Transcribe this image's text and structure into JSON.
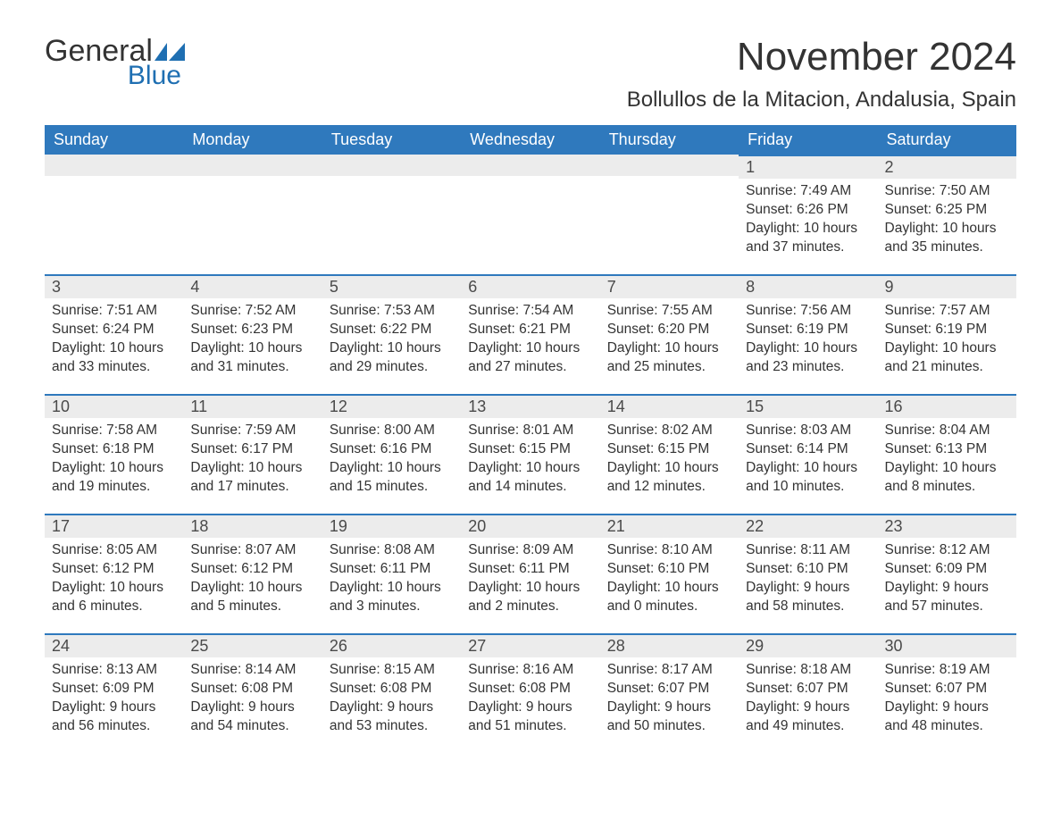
{
  "logo": {
    "word1": "General",
    "word2": "Blue",
    "icon_color": "#1f6fb2"
  },
  "title": "November 2024",
  "location": "Bollullos de la Mitacion, Andalusia, Spain",
  "colors": {
    "header_bg": "#2f79bd",
    "header_text": "#ffffff",
    "band_bg": "#ececec",
    "band_border": "#2f79bd",
    "text": "#333333",
    "logo_blue": "#1f6fb2"
  },
  "weekdays": [
    "Sunday",
    "Monday",
    "Tuesday",
    "Wednesday",
    "Thursday",
    "Friday",
    "Saturday"
  ],
  "labels": {
    "sunrise": "Sunrise:",
    "sunset": "Sunset:",
    "daylight": "Daylight:"
  },
  "weeks": [
    [
      null,
      null,
      null,
      null,
      null,
      {
        "day": "1",
        "sunrise": "7:49 AM",
        "sunset": "6:26 PM",
        "daylight1": "10 hours",
        "daylight2": "and 37 minutes."
      },
      {
        "day": "2",
        "sunrise": "7:50 AM",
        "sunset": "6:25 PM",
        "daylight1": "10 hours",
        "daylight2": "and 35 minutes."
      }
    ],
    [
      {
        "day": "3",
        "sunrise": "7:51 AM",
        "sunset": "6:24 PM",
        "daylight1": "10 hours",
        "daylight2": "and 33 minutes."
      },
      {
        "day": "4",
        "sunrise": "7:52 AM",
        "sunset": "6:23 PM",
        "daylight1": "10 hours",
        "daylight2": "and 31 minutes."
      },
      {
        "day": "5",
        "sunrise": "7:53 AM",
        "sunset": "6:22 PM",
        "daylight1": "10 hours",
        "daylight2": "and 29 minutes."
      },
      {
        "day": "6",
        "sunrise": "7:54 AM",
        "sunset": "6:21 PM",
        "daylight1": "10 hours",
        "daylight2": "and 27 minutes."
      },
      {
        "day": "7",
        "sunrise": "7:55 AM",
        "sunset": "6:20 PM",
        "daylight1": "10 hours",
        "daylight2": "and 25 minutes."
      },
      {
        "day": "8",
        "sunrise": "7:56 AM",
        "sunset": "6:19 PM",
        "daylight1": "10 hours",
        "daylight2": "and 23 minutes."
      },
      {
        "day": "9",
        "sunrise": "7:57 AM",
        "sunset": "6:19 PM",
        "daylight1": "10 hours",
        "daylight2": "and 21 minutes."
      }
    ],
    [
      {
        "day": "10",
        "sunrise": "7:58 AM",
        "sunset": "6:18 PM",
        "daylight1": "10 hours",
        "daylight2": "and 19 minutes."
      },
      {
        "day": "11",
        "sunrise": "7:59 AM",
        "sunset": "6:17 PM",
        "daylight1": "10 hours",
        "daylight2": "and 17 minutes."
      },
      {
        "day": "12",
        "sunrise": "8:00 AM",
        "sunset": "6:16 PM",
        "daylight1": "10 hours",
        "daylight2": "and 15 minutes."
      },
      {
        "day": "13",
        "sunrise": "8:01 AM",
        "sunset": "6:15 PM",
        "daylight1": "10 hours",
        "daylight2": "and 14 minutes."
      },
      {
        "day": "14",
        "sunrise": "8:02 AM",
        "sunset": "6:15 PM",
        "daylight1": "10 hours",
        "daylight2": "and 12 minutes."
      },
      {
        "day": "15",
        "sunrise": "8:03 AM",
        "sunset": "6:14 PM",
        "daylight1": "10 hours",
        "daylight2": "and 10 minutes."
      },
      {
        "day": "16",
        "sunrise": "8:04 AM",
        "sunset": "6:13 PM",
        "daylight1": "10 hours",
        "daylight2": "and 8 minutes."
      }
    ],
    [
      {
        "day": "17",
        "sunrise": "8:05 AM",
        "sunset": "6:12 PM",
        "daylight1": "10 hours",
        "daylight2": "and 6 minutes."
      },
      {
        "day": "18",
        "sunrise": "8:07 AM",
        "sunset": "6:12 PM",
        "daylight1": "10 hours",
        "daylight2": "and 5 minutes."
      },
      {
        "day": "19",
        "sunrise": "8:08 AM",
        "sunset": "6:11 PM",
        "daylight1": "10 hours",
        "daylight2": "and 3 minutes."
      },
      {
        "day": "20",
        "sunrise": "8:09 AM",
        "sunset": "6:11 PM",
        "daylight1": "10 hours",
        "daylight2": "and 2 minutes."
      },
      {
        "day": "21",
        "sunrise": "8:10 AM",
        "sunset": "6:10 PM",
        "daylight1": "10 hours",
        "daylight2": "and 0 minutes."
      },
      {
        "day": "22",
        "sunrise": "8:11 AM",
        "sunset": "6:10 PM",
        "daylight1": "9 hours",
        "daylight2": "and 58 minutes."
      },
      {
        "day": "23",
        "sunrise": "8:12 AM",
        "sunset": "6:09 PM",
        "daylight1": "9 hours",
        "daylight2": "and 57 minutes."
      }
    ],
    [
      {
        "day": "24",
        "sunrise": "8:13 AM",
        "sunset": "6:09 PM",
        "daylight1": "9 hours",
        "daylight2": "and 56 minutes."
      },
      {
        "day": "25",
        "sunrise": "8:14 AM",
        "sunset": "6:08 PM",
        "daylight1": "9 hours",
        "daylight2": "and 54 minutes."
      },
      {
        "day": "26",
        "sunrise": "8:15 AM",
        "sunset": "6:08 PM",
        "daylight1": "9 hours",
        "daylight2": "and 53 minutes."
      },
      {
        "day": "27",
        "sunrise": "8:16 AM",
        "sunset": "6:08 PM",
        "daylight1": "9 hours",
        "daylight2": "and 51 minutes."
      },
      {
        "day": "28",
        "sunrise": "8:17 AM",
        "sunset": "6:07 PM",
        "daylight1": "9 hours",
        "daylight2": "and 50 minutes."
      },
      {
        "day": "29",
        "sunrise": "8:18 AM",
        "sunset": "6:07 PM",
        "daylight1": "9 hours",
        "daylight2": "and 49 minutes."
      },
      {
        "day": "30",
        "sunrise": "8:19 AM",
        "sunset": "6:07 PM",
        "daylight1": "9 hours",
        "daylight2": "and 48 minutes."
      }
    ]
  ]
}
